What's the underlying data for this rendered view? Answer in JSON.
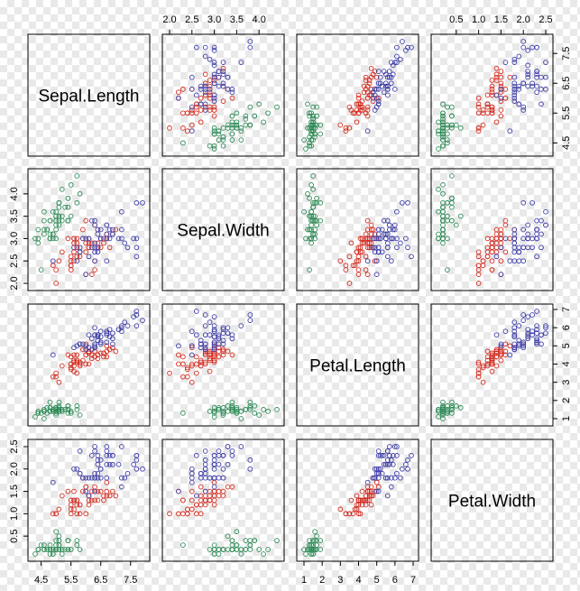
{
  "chart_data": {
    "type": "scatter",
    "subtype": "scatterplot-matrix",
    "variables": [
      "Sepal.Length",
      "Sepal.Width",
      "Petal.Length",
      "Petal.Width"
    ],
    "ranges": {
      "Sepal.Length": [
        4.3,
        7.9
      ],
      "Sepal.Width": [
        2.0,
        4.4
      ],
      "Petal.Length": [
        1.0,
        6.9
      ],
      "Petal.Width": [
        0.1,
        2.5
      ]
    },
    "tick_labels": {
      "Sepal.Length": [
        "4.5",
        "5.5",
        "6.5",
        "7.5"
      ],
      "Sepal.Width": [
        "2.0",
        "2.5",
        "3.0",
        "3.5",
        "4.0"
      ],
      "Petal.Length": [
        "1",
        "2",
        "3",
        "4",
        "5",
        "6",
        "7"
      ],
      "Petal.Width": [
        "0.5",
        "1.0",
        "1.5",
        "2.0",
        "2.5"
      ]
    },
    "grid": false,
    "legend": "none",
    "groups": [
      {
        "color": "#2e8b57",
        "points": [
          [
            5.1,
            3.5,
            1.4,
            0.2
          ],
          [
            4.9,
            3.0,
            1.4,
            0.2
          ],
          [
            4.7,
            3.2,
            1.3,
            0.2
          ],
          [
            4.6,
            3.1,
            1.5,
            0.2
          ],
          [
            5.0,
            3.6,
            1.4,
            0.2
          ],
          [
            5.4,
            3.9,
            1.7,
            0.4
          ],
          [
            4.6,
            3.4,
            1.4,
            0.3
          ],
          [
            5.0,
            3.4,
            1.5,
            0.2
          ],
          [
            4.4,
            2.9,
            1.4,
            0.2
          ],
          [
            4.9,
            3.1,
            1.5,
            0.1
          ],
          [
            5.4,
            3.7,
            1.5,
            0.2
          ],
          [
            4.8,
            3.4,
            1.6,
            0.2
          ],
          [
            4.8,
            3.0,
            1.4,
            0.1
          ],
          [
            4.3,
            3.0,
            1.1,
            0.1
          ],
          [
            5.8,
            4.0,
            1.2,
            0.2
          ],
          [
            5.7,
            4.4,
            1.5,
            0.4
          ],
          [
            5.4,
            3.9,
            1.3,
            0.4
          ],
          [
            5.1,
            3.5,
            1.4,
            0.3
          ],
          [
            5.7,
            3.8,
            1.7,
            0.3
          ],
          [
            5.1,
            3.8,
            1.5,
            0.3
          ],
          [
            5.4,
            3.4,
            1.7,
            0.2
          ],
          [
            5.1,
            3.7,
            1.5,
            0.4
          ],
          [
            4.6,
            3.6,
            1.0,
            0.2
          ],
          [
            5.1,
            3.3,
            1.7,
            0.5
          ],
          [
            4.8,
            3.4,
            1.9,
            0.2
          ],
          [
            5.0,
            3.0,
            1.6,
            0.2
          ],
          [
            5.0,
            3.4,
            1.6,
            0.4
          ],
          [
            5.2,
            3.5,
            1.5,
            0.2
          ],
          [
            5.2,
            3.4,
            1.4,
            0.2
          ],
          [
            4.7,
            3.2,
            1.6,
            0.2
          ],
          [
            4.8,
            3.1,
            1.6,
            0.2
          ],
          [
            5.4,
            3.4,
            1.5,
            0.4
          ],
          [
            5.2,
            4.1,
            1.5,
            0.1
          ],
          [
            5.5,
            4.2,
            1.4,
            0.2
          ],
          [
            4.9,
            3.1,
            1.5,
            0.2
          ],
          [
            5.0,
            3.2,
            1.2,
            0.2
          ],
          [
            5.5,
            3.5,
            1.3,
            0.2
          ],
          [
            4.9,
            3.6,
            1.4,
            0.1
          ],
          [
            4.4,
            3.0,
            1.3,
            0.2
          ],
          [
            5.1,
            3.4,
            1.5,
            0.2
          ],
          [
            5.0,
            3.5,
            1.3,
            0.3
          ],
          [
            4.5,
            2.3,
            1.3,
            0.3
          ],
          [
            4.4,
            3.2,
            1.3,
            0.2
          ],
          [
            5.0,
            3.5,
            1.6,
            0.6
          ],
          [
            5.1,
            3.8,
            1.9,
            0.4
          ],
          [
            4.8,
            3.0,
            1.4,
            0.3
          ],
          [
            5.1,
            3.8,
            1.6,
            0.2
          ],
          [
            4.6,
            3.2,
            1.4,
            0.2
          ],
          [
            5.3,
            3.7,
            1.5,
            0.2
          ],
          [
            5.0,
            3.3,
            1.4,
            0.2
          ]
        ]
      },
      {
        "color": "#d42a1e",
        "points": [
          [
            7.0,
            3.2,
            4.7,
            1.4
          ],
          [
            6.4,
            3.2,
            4.5,
            1.5
          ],
          [
            6.9,
            3.1,
            4.9,
            1.5
          ],
          [
            5.5,
            2.3,
            4.0,
            1.3
          ],
          [
            6.5,
            2.8,
            4.6,
            1.5
          ],
          [
            5.7,
            2.8,
            4.5,
            1.3
          ],
          [
            6.3,
            3.3,
            4.7,
            1.6
          ],
          [
            4.9,
            2.4,
            3.3,
            1.0
          ],
          [
            6.6,
            2.9,
            4.6,
            1.3
          ],
          [
            5.2,
            2.7,
            3.9,
            1.4
          ],
          [
            5.0,
            2.0,
            3.5,
            1.0
          ],
          [
            5.9,
            3.0,
            4.2,
            1.5
          ],
          [
            6.0,
            2.2,
            4.0,
            1.0
          ],
          [
            6.1,
            2.9,
            4.7,
            1.4
          ],
          [
            5.6,
            2.9,
            3.6,
            1.3
          ],
          [
            6.7,
            3.1,
            4.4,
            1.4
          ],
          [
            5.6,
            3.0,
            4.5,
            1.5
          ],
          [
            5.8,
            2.7,
            4.1,
            1.0
          ],
          [
            6.2,
            2.2,
            4.5,
            1.5
          ],
          [
            5.6,
            2.5,
            3.9,
            1.1
          ],
          [
            5.9,
            3.2,
            4.8,
            1.8
          ],
          [
            6.1,
            2.8,
            4.0,
            1.3
          ],
          [
            6.3,
            2.5,
            4.9,
            1.5
          ],
          [
            6.1,
            2.8,
            4.7,
            1.2
          ],
          [
            6.4,
            2.9,
            4.3,
            1.3
          ],
          [
            6.6,
            3.0,
            4.4,
            1.4
          ],
          [
            6.8,
            2.8,
            4.8,
            1.4
          ],
          [
            6.7,
            3.0,
            5.0,
            1.7
          ],
          [
            6.0,
            2.9,
            4.5,
            1.5
          ],
          [
            5.7,
            2.6,
            3.5,
            1.0
          ],
          [
            5.5,
            2.4,
            3.8,
            1.1
          ],
          [
            5.5,
            2.4,
            3.7,
            1.0
          ],
          [
            5.8,
            2.7,
            3.9,
            1.2
          ],
          [
            6.0,
            2.7,
            5.1,
            1.6
          ],
          [
            5.4,
            3.0,
            4.5,
            1.5
          ],
          [
            6.0,
            3.4,
            4.5,
            1.6
          ],
          [
            6.7,
            3.1,
            4.7,
            1.5
          ],
          [
            6.3,
            2.3,
            4.4,
            1.3
          ],
          [
            5.6,
            3.0,
            4.1,
            1.3
          ],
          [
            5.5,
            2.5,
            4.0,
            1.3
          ],
          [
            5.5,
            2.6,
            4.4,
            1.2
          ],
          [
            6.1,
            3.0,
            4.6,
            1.4
          ],
          [
            5.8,
            2.6,
            4.0,
            1.2
          ],
          [
            5.0,
            2.3,
            3.3,
            1.0
          ],
          [
            5.6,
            2.7,
            4.2,
            1.3
          ],
          [
            5.7,
            3.0,
            4.2,
            1.2
          ],
          [
            5.7,
            2.9,
            4.2,
            1.3
          ],
          [
            6.2,
            2.9,
            4.3,
            1.3
          ],
          [
            5.1,
            2.5,
            3.0,
            1.1
          ],
          [
            5.7,
            2.8,
            4.1,
            1.3
          ]
        ]
      },
      {
        "color": "#3f3fa8",
        "points": [
          [
            6.3,
            3.3,
            6.0,
            2.5
          ],
          [
            5.8,
            2.7,
            5.1,
            1.9
          ],
          [
            7.1,
            3.0,
            5.9,
            2.1
          ],
          [
            6.3,
            2.9,
            5.6,
            1.8
          ],
          [
            6.5,
            3.0,
            5.8,
            2.2
          ],
          [
            7.6,
            3.0,
            6.6,
            2.1
          ],
          [
            4.9,
            2.5,
            4.5,
            1.7
          ],
          [
            7.3,
            2.9,
            6.3,
            1.8
          ],
          [
            6.7,
            2.5,
            5.8,
            1.8
          ],
          [
            7.2,
            3.6,
            6.1,
            2.5
          ],
          [
            6.5,
            3.2,
            5.1,
            2.0
          ],
          [
            6.4,
            2.7,
            5.3,
            1.9
          ],
          [
            6.8,
            3.0,
            5.5,
            2.1
          ],
          [
            5.7,
            2.5,
            5.0,
            2.0
          ],
          [
            5.8,
            2.8,
            5.1,
            2.4
          ],
          [
            6.4,
            3.2,
            5.3,
            2.3
          ],
          [
            6.5,
            3.0,
            5.5,
            1.8
          ],
          [
            7.7,
            3.8,
            6.7,
            2.2
          ],
          [
            7.7,
            2.6,
            6.9,
            2.3
          ],
          [
            6.0,
            2.2,
            5.0,
            1.5
          ],
          [
            6.9,
            3.2,
            5.7,
            2.3
          ],
          [
            5.6,
            2.8,
            4.9,
            2.0
          ],
          [
            7.7,
            2.8,
            6.7,
            2.0
          ],
          [
            6.3,
            2.7,
            4.9,
            1.8
          ],
          [
            6.7,
            3.3,
            5.7,
            2.1
          ],
          [
            7.2,
            3.2,
            6.0,
            1.8
          ],
          [
            6.2,
            2.8,
            4.8,
            1.8
          ],
          [
            6.1,
            3.0,
            4.9,
            1.8
          ],
          [
            6.4,
            2.8,
            5.6,
            2.1
          ],
          [
            7.2,
            3.0,
            5.8,
            1.6
          ],
          [
            7.4,
            2.8,
            6.1,
            1.9
          ],
          [
            7.9,
            3.8,
            6.4,
            2.0
          ],
          [
            6.4,
            2.8,
            5.6,
            2.2
          ],
          [
            6.3,
            2.8,
            5.1,
            1.5
          ],
          [
            6.1,
            2.6,
            5.6,
            1.4
          ],
          [
            7.7,
            3.0,
            6.1,
            2.3
          ],
          [
            6.3,
            3.4,
            5.6,
            2.4
          ],
          [
            6.4,
            3.1,
            5.5,
            1.8
          ],
          [
            6.0,
            3.0,
            4.8,
            1.8
          ],
          [
            6.9,
            3.1,
            5.4,
            2.1
          ],
          [
            6.7,
            3.1,
            5.6,
            2.4
          ],
          [
            6.9,
            3.1,
            5.1,
            2.3
          ],
          [
            5.8,
            2.7,
            5.1,
            1.9
          ],
          [
            6.8,
            3.2,
            5.9,
            2.3
          ],
          [
            6.7,
            3.3,
            5.7,
            2.5
          ],
          [
            6.7,
            3.0,
            5.2,
            2.3
          ],
          [
            6.3,
            2.5,
            5.0,
            1.9
          ],
          [
            6.5,
            3.0,
            5.2,
            2.0
          ],
          [
            6.2,
            3.4,
            5.4,
            2.3
          ],
          [
            5.9,
            3.0,
            5.1,
            1.8
          ]
        ]
      }
    ]
  }
}
